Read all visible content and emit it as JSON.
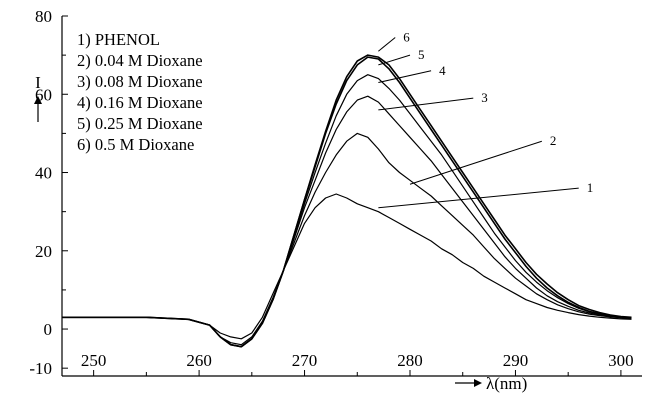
{
  "chart_data": {
    "type": "line",
    "title": "",
    "xlabel": "λ(nm)",
    "ylabel": "I",
    "xlim": [
      247,
      302
    ],
    "ylim": [
      -12,
      80
    ],
    "x_ticks": [
      250,
      260,
      270,
      280,
      290,
      300
    ],
    "y_ticks": [
      -10,
      0,
      20,
      40,
      60,
      80
    ],
    "grid": false,
    "legend_position": "top-left",
    "legend": [
      "1) PHENOL",
      "2) 0.04 M Dioxane",
      "3) 0.08 M Dioxane",
      "4) 0.16 M Dioxane",
      "5) 0.25 M Dioxane",
      "6) 0.5  M Dioxane"
    ],
    "series": [
      {
        "label": "1",
        "color": "#000000",
        "x": [
          247,
          255,
          259,
          261,
          262,
          263,
          264,
          265,
          266,
          267,
          268,
          269,
          270,
          271,
          272,
          273,
          274,
          275,
          276,
          277,
          278,
          279,
          280,
          281,
          282,
          283,
          284,
          285,
          286,
          287,
          288,
          289,
          290,
          291,
          292,
          293,
          294,
          295,
          296,
          297,
          298,
          299,
          300,
          301
        ],
        "y": [
          3,
          3,
          2.5,
          1,
          -1,
          -2,
          -2.5,
          -1,
          3,
          9,
          15,
          21,
          27,
          31,
          33.5,
          34.5,
          33.5,
          32,
          31,
          30,
          28.5,
          27,
          25.5,
          24,
          22.5,
          20.5,
          19,
          17,
          15.5,
          13.5,
          12,
          10.5,
          9,
          7.5,
          6.5,
          5.5,
          4.8,
          4.2,
          3.7,
          3.3,
          3,
          2.8,
          2.6,
          2.5
        ]
      },
      {
        "label": "2",
        "color": "#000000",
        "x": [
          247,
          255,
          259,
          261,
          262,
          263,
          264,
          265,
          266,
          267,
          268,
          269,
          270,
          271,
          272,
          273,
          274,
          275,
          276,
          277,
          278,
          279,
          280,
          281,
          282,
          283,
          284,
          285,
          286,
          287,
          288,
          289,
          290,
          291,
          292,
          293,
          294,
          295,
          296,
          297,
          298,
          299,
          300,
          301
        ],
        "y": [
          3,
          3,
          2.5,
          1,
          -2,
          -3.5,
          -4,
          -2,
          2,
          8,
          15,
          22,
          29,
          35,
          40,
          44.5,
          48,
          50,
          49,
          46,
          42.5,
          40,
          38,
          36,
          34,
          31.5,
          29,
          26.5,
          24,
          21,
          18,
          15.5,
          13,
          11,
          9,
          7.5,
          6.2,
          5.2,
          4.4,
          3.8,
          3.4,
          3.1,
          2.9,
          2.7
        ]
      },
      {
        "label": "3",
        "color": "#000000",
        "x": [
          247,
          255,
          259,
          261,
          262,
          263,
          264,
          265,
          266,
          267,
          268,
          269,
          270,
          271,
          272,
          273,
          274,
          275,
          276,
          277,
          278,
          279,
          280,
          281,
          282,
          283,
          284,
          285,
          286,
          287,
          288,
          289,
          290,
          291,
          292,
          293,
          294,
          295,
          296,
          297,
          298,
          299,
          300,
          301
        ],
        "y": [
          3,
          3,
          2.5,
          1,
          -2,
          -4,
          -4.5,
          -2.5,
          1.5,
          7.5,
          15,
          23,
          31,
          38,
          45,
          51,
          55.5,
          58.5,
          59.5,
          58,
          55,
          52,
          49,
          46,
          43,
          39.5,
          36,
          32.5,
          29,
          25.5,
          22,
          18.5,
          15.5,
          13,
          10.5,
          8.5,
          7,
          5.8,
          4.8,
          4.1,
          3.6,
          3.2,
          2.9,
          2.7
        ]
      },
      {
        "label": "4",
        "color": "#000000",
        "x": [
          247,
          255,
          259,
          261,
          262,
          263,
          264,
          265,
          266,
          267,
          268,
          269,
          270,
          271,
          272,
          273,
          274,
          275,
          276,
          277,
          278,
          279,
          280,
          281,
          282,
          283,
          284,
          285,
          286,
          287,
          288,
          289,
          290,
          291,
          292,
          293,
          294,
          295,
          296,
          297,
          298,
          299,
          300,
          301
        ],
        "y": [
          3,
          3,
          2.5,
          1,
          -2,
          -4,
          -4.5,
          -2.5,
          1.5,
          7.5,
          15,
          23.5,
          32,
          40,
          47.5,
          54.5,
          60,
          63.5,
          65,
          64,
          61.5,
          58.5,
          55,
          51.5,
          48,
          44.5,
          40.5,
          36.5,
          32.5,
          28.5,
          24.5,
          21,
          17.5,
          14.5,
          12,
          9.8,
          8,
          6.5,
          5.3,
          4.4,
          3.8,
          3.3,
          3,
          2.8
        ]
      },
      {
        "label": "5",
        "color": "#000000",
        "x": [
          247,
          255,
          259,
          261,
          262,
          263,
          264,
          265,
          266,
          267,
          268,
          269,
          270,
          271,
          272,
          273,
          274,
          275,
          276,
          277,
          278,
          279,
          280,
          281,
          282,
          283,
          284,
          285,
          286,
          287,
          288,
          289,
          290,
          291,
          292,
          293,
          294,
          295,
          296,
          297,
          298,
          299,
          300,
          301
        ],
        "y": [
          3,
          3,
          2.5,
          1,
          -2,
          -4,
          -4.5,
          -2.5,
          1.5,
          7.5,
          15,
          24,
          33,
          41.5,
          50,
          57.5,
          63.5,
          67.5,
          69.5,
          69,
          66.5,
          63,
          59,
          55,
          51,
          47,
          43,
          39,
          35,
          31,
          27,
          23,
          19.5,
          16,
          13,
          10.5,
          8.5,
          6.8,
          5.5,
          4.5,
          3.9,
          3.4,
          3,
          2.8
        ]
      },
      {
        "label": "6",
        "color": "#000000",
        "x": [
          247,
          255,
          259,
          261,
          262,
          263,
          264,
          265,
          266,
          267,
          268,
          269,
          270,
          271,
          272,
          273,
          274,
          275,
          276,
          277,
          278,
          279,
          280,
          281,
          282,
          283,
          284,
          285,
          286,
          287,
          288,
          289,
          290,
          291,
          292,
          293,
          294,
          295,
          296,
          297,
          298,
          299,
          300,
          301
        ],
        "y": [
          3,
          3,
          2.5,
          1,
          -2,
          -4,
          -4.5,
          -2.5,
          1.5,
          7.5,
          15,
          24,
          33,
          42,
          50.5,
          58.5,
          64.5,
          68.5,
          70,
          69.5,
          67.5,
          64,
          60,
          56,
          52,
          48,
          44,
          40,
          36,
          32,
          28,
          24,
          20.5,
          17,
          14,
          11.5,
          9.3,
          7.5,
          6,
          5,
          4.2,
          3.6,
          3.2,
          3
        ]
      }
    ],
    "callouts": [
      {
        "label": "1",
        "from": [
          277,
          31
        ],
        "to": [
          296,
          36
        ]
      },
      {
        "label": "2",
        "from": [
          280,
          37
        ],
        "to": [
          292.5,
          48
        ]
      },
      {
        "label": "3",
        "from": [
          277,
          56
        ],
        "to": [
          286,
          59
        ]
      },
      {
        "label": "4",
        "from": [
          277,
          63
        ],
        "to": [
          282,
          66
        ]
      },
      {
        "label": "5",
        "from": [
          277,
          67.5
        ],
        "to": [
          280,
          70
        ]
      },
      {
        "label": "6",
        "from": [
          277,
          71
        ],
        "to": [
          278.6,
          74.5
        ]
      }
    ]
  }
}
